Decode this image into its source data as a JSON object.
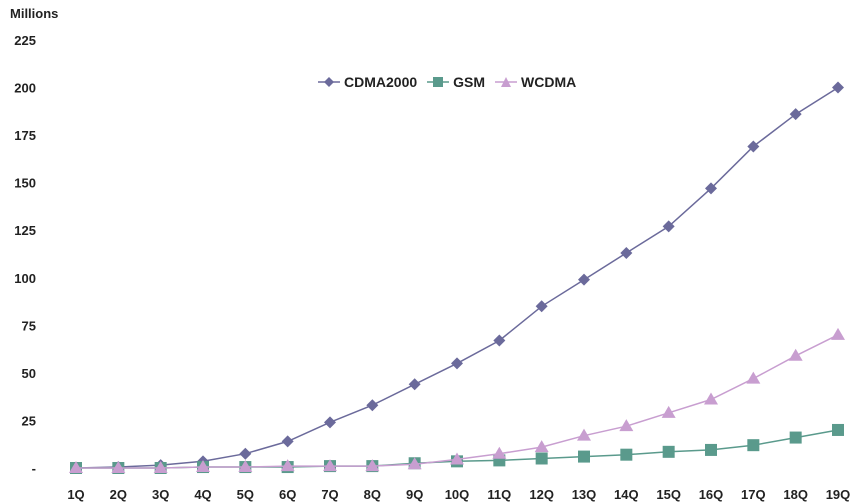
{
  "chart_data": {
    "type": "line",
    "ylabel": "Millions",
    "ylim": [
      0,
      225
    ],
    "ytick_labels": [
      "-",
      "25",
      "50",
      "75",
      "100",
      "125",
      "150",
      "175",
      "200",
      "225"
    ],
    "categories": [
      "1Q",
      "2Q",
      "3Q",
      "4Q",
      "5Q",
      "6Q",
      "7Q",
      "8Q",
      "9Q",
      "10Q",
      "11Q",
      "12Q",
      "13Q",
      "14Q",
      "15Q",
      "16Q",
      "17Q",
      "18Q",
      "19Q"
    ],
    "grid": false,
    "legend_position": "top-center",
    "series": [
      {
        "name": "CDMA2000",
        "marker": "diamond",
        "color": "#6b6a9b",
        "values": [
          0,
          0.5,
          1.5,
          3.5,
          7.5,
          14,
          24,
          33,
          44,
          55,
          67,
          85,
          99,
          113,
          127,
          147,
          169,
          186,
          200
        ]
      },
      {
        "name": "GSM",
        "marker": "square",
        "color": "#5a9a8c",
        "values": [
          0,
          0,
          0,
          0.5,
          0.5,
          0.5,
          1,
          1,
          2.5,
          3.5,
          4,
          5,
          6,
          7,
          8.5,
          9.5,
          12,
          16,
          20
        ]
      },
      {
        "name": "WCDMA",
        "marker": "triangle",
        "color": "#c89ed0",
        "values": [
          0,
          0,
          0,
          0.5,
          0.5,
          1,
          1,
          1,
          2,
          4.5,
          7.5,
          11,
          17,
          22,
          29,
          36,
          47,
          59,
          70
        ]
      }
    ]
  }
}
